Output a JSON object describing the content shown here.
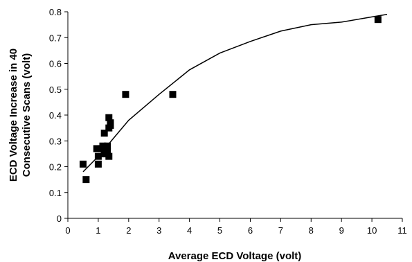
{
  "chart_data": {
    "type": "scatter",
    "title": "",
    "xlabel": "Average ECD Voltage (volt)",
    "ylabel_lines": [
      "ECD Voltage Increase in 40",
      "Consecutive Scans (volt)"
    ],
    "xlim": [
      0,
      11
    ],
    "ylim": [
      0,
      0.8
    ],
    "x_ticks": [
      "0",
      "1",
      "2",
      "3",
      "4",
      "5",
      "6",
      "7",
      "8",
      "9",
      "10",
      "11"
    ],
    "y_ticks": [
      "0",
      "0.1",
      "0.2",
      "0.3",
      "0.4",
      "0.5",
      "0.6",
      "0.7",
      "0.8"
    ],
    "grid": false,
    "legend": "none",
    "marker_color": "#000000",
    "series": [
      {
        "type": "scatter",
        "marker": "square",
        "points": [
          {
            "x": 0.5,
            "y": 0.21
          },
          {
            "x": 0.6,
            "y": 0.15
          },
          {
            "x": 0.95,
            "y": 0.27
          },
          {
            "x": 1.0,
            "y": 0.24
          },
          {
            "x": 1.0,
            "y": 0.21
          },
          {
            "x": 1.1,
            "y": 0.27
          },
          {
            "x": 1.15,
            "y": 0.28
          },
          {
            "x": 1.2,
            "y": 0.33
          },
          {
            "x": 1.2,
            "y": 0.25
          },
          {
            "x": 1.25,
            "y": 0.27
          },
          {
            "x": 1.3,
            "y": 0.28
          },
          {
            "x": 1.3,
            "y": 0.26
          },
          {
            "x": 1.35,
            "y": 0.24
          },
          {
            "x": 1.35,
            "y": 0.35
          },
          {
            "x": 1.35,
            "y": 0.39
          },
          {
            "x": 1.4,
            "y": 0.37
          },
          {
            "x": 1.4,
            "y": 0.36
          },
          {
            "x": 1.9,
            "y": 0.48
          },
          {
            "x": 3.45,
            "y": 0.48
          },
          {
            "x": 10.2,
            "y": 0.77
          }
        ]
      },
      {
        "type": "line",
        "points": [
          {
            "x": 0.5,
            "y": 0.18
          },
          {
            "x": 1.0,
            "y": 0.24
          },
          {
            "x": 1.5,
            "y": 0.31
          },
          {
            "x": 2.0,
            "y": 0.38
          },
          {
            "x": 3.0,
            "y": 0.48
          },
          {
            "x": 4.0,
            "y": 0.575
          },
          {
            "x": 5.0,
            "y": 0.64
          },
          {
            "x": 6.0,
            "y": 0.685
          },
          {
            "x": 7.0,
            "y": 0.725
          },
          {
            "x": 8.0,
            "y": 0.75
          },
          {
            "x": 9.0,
            "y": 0.76
          },
          {
            "x": 10.0,
            "y": 0.78
          },
          {
            "x": 10.5,
            "y": 0.79
          }
        ]
      }
    ]
  }
}
